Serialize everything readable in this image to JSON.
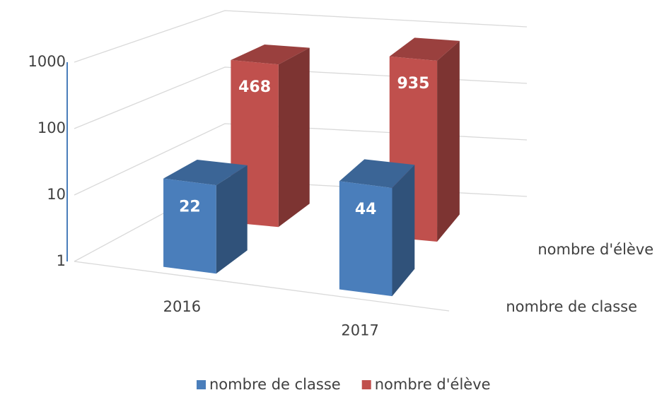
{
  "chart_data": {
    "type": "bar3d",
    "categories": [
      "2016",
      "2017"
    ],
    "series": [
      {
        "name": "nombre de classe",
        "color": "#4a7ebb",
        "values": [
          22,
          44
        ]
      },
      {
        "name": "nombre d'élève",
        "color": "#c0504d",
        "values": [
          468,
          935
        ]
      }
    ],
    "log_scale": true,
    "ylim": [
      1,
      1000
    ],
    "yticks": [
      1,
      10,
      100,
      1000
    ],
    "grid": true,
    "legend": "bottom"
  }
}
